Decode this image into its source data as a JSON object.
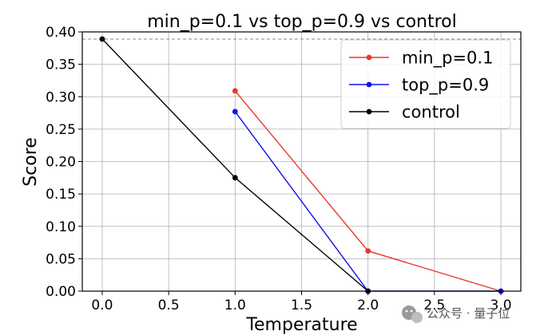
{
  "chart_data": {
    "type": "line",
    "title": "min_p=0.1 vs top_p=0.9 vs control",
    "xlabel": "Temperature",
    "ylabel": "Score",
    "xlim": [
      -0.15,
      3.15
    ],
    "ylim": [
      0.0,
      0.4
    ],
    "xticks": [
      0.0,
      0.5,
      1.0,
      1.5,
      2.0,
      2.5,
      3.0
    ],
    "xtick_labels": [
      "0.0",
      "0.5",
      "1.0",
      "1.5",
      "2.0",
      "2.5",
      "3.0"
    ],
    "yticks": [
      0.0,
      0.05,
      0.1,
      0.15,
      0.2,
      0.25,
      0.3,
      0.35,
      0.4
    ],
    "ytick_labels": [
      "0.00",
      "0.05",
      "0.10",
      "0.15",
      "0.20",
      "0.25",
      "0.30",
      "0.35",
      "0.40"
    ],
    "grid": true,
    "legend_position": "top-right",
    "reference_line": {
      "y": 0.389,
      "style": "dashed",
      "color": "#888888"
    },
    "series": [
      {
        "name": "min_p=0.1",
        "color": "#e8372c",
        "x": [
          1.0,
          2.0,
          3.0
        ],
        "y": [
          0.309,
          0.062,
          0.0
        ]
      },
      {
        "name": "top_p=0.9",
        "color": "#1010ee",
        "x": [
          1.0,
          2.0,
          3.0
        ],
        "y": [
          0.277,
          0.0,
          0.0
        ]
      },
      {
        "name": "control",
        "color": "#000000",
        "x": [
          0.0,
          1.0,
          2.0
        ],
        "y": [
          0.389,
          0.175,
          0.0
        ]
      }
    ]
  },
  "watermark": {
    "icon": "wechat-icon",
    "text": "公众号 · 量子位"
  }
}
